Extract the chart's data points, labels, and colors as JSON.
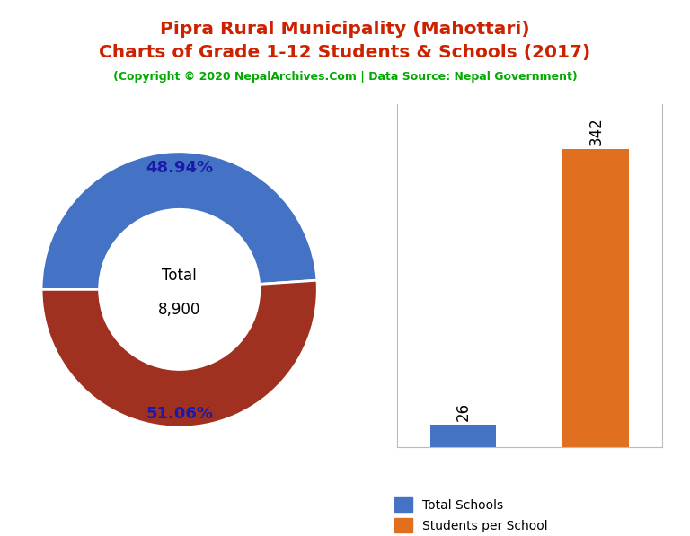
{
  "title_line1": "Pipra Rural Municipality (Mahottari)",
  "title_line2": "Charts of Grade 1-12 Students & Schools (2017)",
  "subtitle": "(Copyright © 2020 NepalArchives.Com | Data Source: Nepal Government)",
  "title_color": "#cc2200",
  "subtitle_color": "#00aa00",
  "male_students": 4356,
  "female_students": 4544,
  "total_students": 8900,
  "male_pct": 48.94,
  "female_pct": 51.06,
  "male_color": "#4472c4",
  "female_color": "#a03020",
  "total_schools": 26,
  "students_per_school": 342,
  "bar_blue": "#4472c4",
  "bar_orange": "#e07020",
  "pct_label_color": "#1a1aaa",
  "background_color": "#ffffff"
}
